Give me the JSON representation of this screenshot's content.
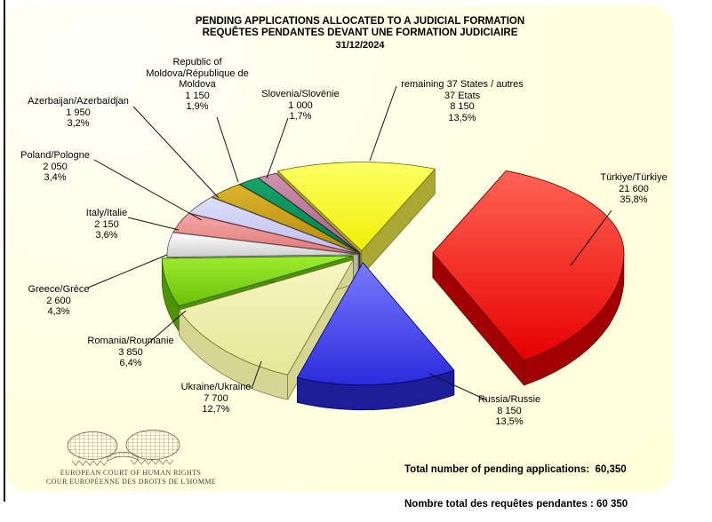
{
  "page": {
    "background": "#FFFFFF",
    "plot_background": "#FFFFDE",
    "left_border_color": "#000000"
  },
  "title": {
    "line1": "PENDING APPLICATIONS ALLOCATED TO A JUDICIAL FORMATION",
    "line2": "REQUÊTES PENDANTES DEVANT UNE FORMATION JUDICIAIRE",
    "date": "31/12/2024"
  },
  "chart_data": {
    "type": "pie",
    "style": "3d-exploded",
    "title": "Pending applications allocated to a judicial formation",
    "date": "31/12/2024",
    "total": 60350,
    "legend_position": "callout-labels",
    "slices": [
      {
        "id": "remaining",
        "name_lines": [
          "remaining 37 States / autres",
          "37 Etats"
        ],
        "value": 8150,
        "value_str": "8 150",
        "pct": 13.5,
        "pct_str": "13,5%",
        "color": "#EFEF05",
        "light": "#FFFF66",
        "side": "#A8A832",
        "edge": "#6B6B16",
        "explode": 8
      },
      {
        "id": "turkiye",
        "name_lines": [
          "Türkiye/Türkiye"
        ],
        "value": 21600,
        "value_str": "21 600",
        "pct": 35.8,
        "pct_str": "35,8%",
        "color": "#E60000",
        "light": "#FF6455",
        "side": "#A00000",
        "edge": "#5A0000",
        "explode": 80
      },
      {
        "id": "russia",
        "name_lines": [
          "Russia/Russie"
        ],
        "value": 8150,
        "value_str": "8 150",
        "pct": 13.5,
        "pct_str": "13,5%",
        "color": "#2B2BDC",
        "light": "#7A7AFF",
        "side": "#1D1D9A",
        "edge": "#00005E",
        "explode": 16
      },
      {
        "id": "ukraine",
        "name_lines": [
          "Ukraine/Ukraine"
        ],
        "value": 7700,
        "value_str": "7 700",
        "pct": 12.7,
        "pct_str": "12,7%",
        "color": "#E6E697",
        "light": "#F6F6C4",
        "side": "#D6D692",
        "edge": "#6E6E2A",
        "explode": 14
      },
      {
        "id": "romania",
        "name_lines": [
          "Romania/Roumanie"
        ],
        "value": 3850,
        "value_str": "3 850",
        "pct": 6.4,
        "pct_str": "6,4%",
        "color": "#6CC00A",
        "light": "#9CEC2E",
        "side": "#4E9400",
        "edge": "#2C5E00",
        "explode": 10
      },
      {
        "id": "greece",
        "name_lines": [
          "Greece/Grèce"
        ],
        "value": 2600,
        "value_str": "2 600",
        "pct": 4.3,
        "pct_str": "4,3%",
        "color": "#CFCFCF",
        "light": "#FFFFFF",
        "side": "#B3B3B3",
        "edge": "#606060",
        "explode": 4
      },
      {
        "id": "italy",
        "name_lines": [
          "Italy/Italie"
        ],
        "value": 2150,
        "value_str": "2 150",
        "pct": 3.6,
        "pct_str": "3,6%",
        "color": "#E07878",
        "light": "#F4A8A8",
        "side": "#AA5252",
        "edge": "#6E2E2E",
        "explode": 4
      },
      {
        "id": "poland",
        "name_lines": [
          "Poland/Pologne"
        ],
        "value": 2050,
        "value_str": "2 050",
        "pct": 3.4,
        "pct_str": "3,4%",
        "color": "#BEBEEC",
        "light": "#DEDEFA",
        "side": "#9090C2",
        "edge": "#515173",
        "explode": 4
      },
      {
        "id": "azerbaijan",
        "name_lines": [
          "Azerbaijan/Azerbaïdjan"
        ],
        "value": 1950,
        "value_str": "1 950",
        "pct": 3.2,
        "pct_str": "3,2%",
        "color": "#B38A0A",
        "light": "#DCB52E",
        "side": "#806200",
        "edge": "#473600",
        "explode": 4
      },
      {
        "id": "moldova",
        "name_lines": [
          "Republic of",
          "Moldova/République de",
          "Moldova"
        ],
        "value": 1150,
        "value_str": "1 150",
        "pct": 1.9,
        "pct_str": "1,9%",
        "color": "#007A4B",
        "light": "#17A66C",
        "side": "#005434",
        "edge": "#00301E",
        "explode": 4
      },
      {
        "id": "slovenia",
        "name_lines": [
          "Slovenia/Slovénie"
        ],
        "value": 1000,
        "value_str": "1 000",
        "pct": 1.7,
        "pct_str": "1,7%",
        "color": "#A85C80",
        "light": "#CE93B0",
        "side": "#774060",
        "edge": "#472338",
        "explode": 4
      }
    ]
  },
  "totals": {
    "line1": "Total number of pending applications:  60,350",
    "line2": "Nombre total des requêtes pendantes : 60 350"
  },
  "logo": {
    "line1": "EUROPEAN COURT OF HUMAN RIGHTS",
    "line2": "COUR EUROPÉENNE DES DROITS DE L'HOMME"
  }
}
